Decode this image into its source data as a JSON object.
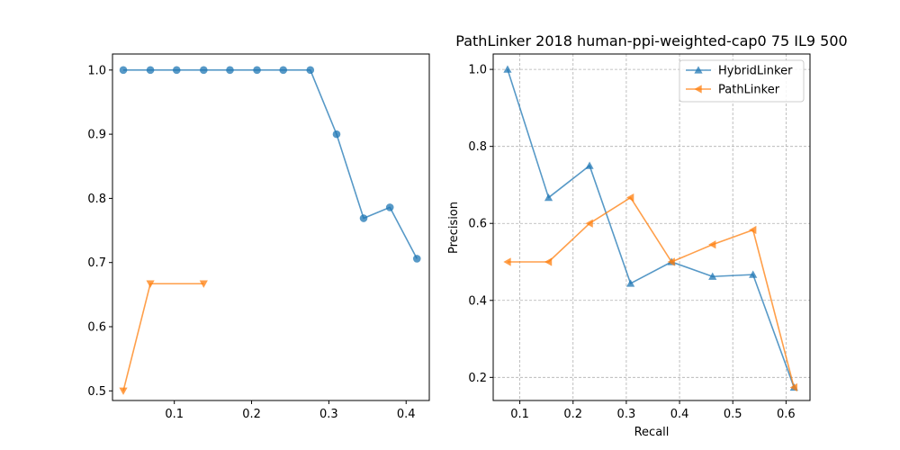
{
  "chart_data": [
    {
      "type": "line",
      "title": "",
      "xlabel": "",
      "ylabel": "",
      "xlim": [
        0.02,
        0.43
      ],
      "ylim": [
        0.485,
        1.025
      ],
      "xticks": [
        0.1,
        0.2,
        0.3,
        0.4
      ],
      "yticks": [
        0.5,
        0.6,
        0.7,
        0.8,
        0.9,
        1.0
      ],
      "xtick_labels": [
        "0.1",
        "0.2",
        "0.3",
        "0.4"
      ],
      "ytick_labels": [
        "0.5",
        "0.6",
        "0.7",
        "0.8",
        "0.9",
        "1.0"
      ],
      "grid": false,
      "legend": null,
      "series": [
        {
          "marker": "circle",
          "color": "#1f77b4",
          "x": [
            0.034,
            0.069,
            0.103,
            0.138,
            0.172,
            0.207,
            0.241,
            0.276,
            0.31,
            0.345,
            0.379,
            0.414
          ],
          "y": [
            1.0,
            1.0,
            1.0,
            1.0,
            1.0,
            1.0,
            1.0,
            1.0,
            0.9,
            0.769,
            0.786,
            0.706
          ]
        },
        {
          "marker": "triangle-down",
          "color": "#ff7f0e",
          "x": [
            0.034,
            0.069,
            0.138
          ],
          "y": [
            0.5,
            0.667,
            0.667
          ]
        }
      ]
    },
    {
      "type": "line",
      "title": "PathLinker 2018 human-ppi-weighted-cap0 75 IL9 500",
      "xlabel": "Recall",
      "ylabel": "Precision",
      "xlim": [
        0.05,
        0.645
      ],
      "ylim": [
        0.14,
        1.04
      ],
      "xticks": [
        0.1,
        0.2,
        0.3,
        0.4,
        0.5,
        0.6
      ],
      "yticks": [
        0.2,
        0.4,
        0.6,
        0.8,
        1.0
      ],
      "xtick_labels": [
        "0.1",
        "0.2",
        "0.3",
        "0.4",
        "0.5",
        "0.6"
      ],
      "ytick_labels": [
        "0.2",
        "0.4",
        "0.6",
        "0.8",
        "1.0"
      ],
      "grid": true,
      "legend": "upper-right",
      "series": [
        {
          "name": "HybridLinker",
          "marker": "triangle-up",
          "color": "#1f77b4",
          "x": [
            0.077,
            0.154,
            0.231,
            0.308,
            0.385,
            0.462,
            0.538,
            0.615
          ],
          "y": [
            1.0,
            0.667,
            0.75,
            0.444,
            0.5,
            0.462,
            0.467,
            0.174
          ]
        },
        {
          "name": "PathLinker",
          "marker": "triangle-left",
          "color": "#ff7f0e",
          "x": [
            0.077,
            0.154,
            0.231,
            0.308,
            0.385,
            0.462,
            0.538,
            0.615
          ],
          "y": [
            0.5,
            0.5,
            0.6,
            0.667,
            0.5,
            0.545,
            0.583,
            0.174
          ]
        }
      ]
    }
  ]
}
